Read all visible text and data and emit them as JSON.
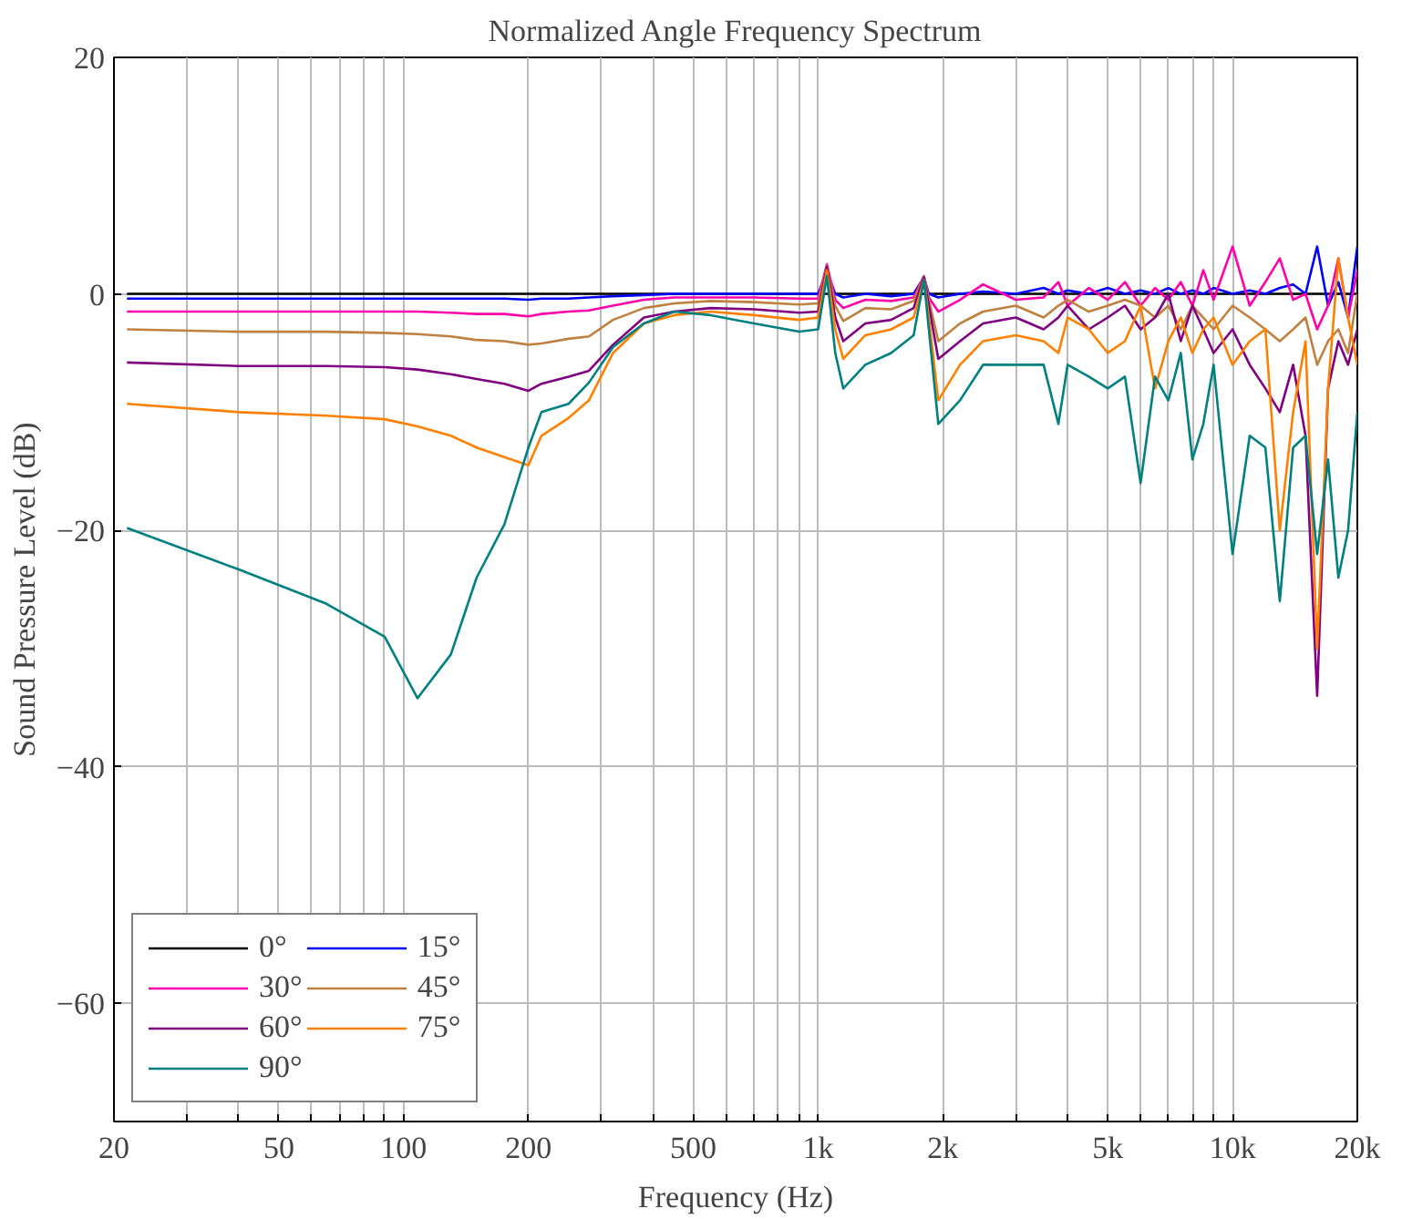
{
  "chart_data": {
    "type": "line",
    "title": "Normalized Angle Frequency Spectrum",
    "xlabel": "Frequency (Hz)",
    "ylabel": "Sound Pressure Level (dB)",
    "log": "x",
    "grid": true,
    "legend": "bottom left",
    "line_style": "solid",
    "marker": "none",
    "xlim": [
      20,
      20000
    ],
    "ylim": [
      -70,
      20
    ],
    "xticks": [
      20,
      {
        "value": 30,
        "label": null
      },
      {
        "value": 40,
        "label": null
      },
      50,
      {
        "value": 60,
        "label": null
      },
      {
        "value": 70,
        "label": null
      },
      {
        "value": 80,
        "label": null
      },
      {
        "value": 90,
        "label": null
      },
      100,
      200,
      {
        "value": 300,
        "label": null
      },
      {
        "value": 400,
        "label": null
      },
      500,
      {
        "value": 600,
        "label": null
      },
      {
        "value": 700,
        "label": null
      },
      {
        "value": 800,
        "label": null
      },
      {
        "value": 900,
        "label": null
      },
      {
        "value": 1000,
        "label": "1k"
      },
      {
        "value": 2000,
        "label": "2k"
      },
      {
        "value": 3000,
        "label": null
      },
      {
        "value": 4000,
        "label": null
      },
      {
        "value": 5000,
        "label": "5k"
      },
      {
        "value": 6000,
        "label": null
      },
      {
        "value": 7000,
        "label": null
      },
      {
        "value": 8000,
        "label": null
      },
      {
        "value": 9000,
        "label": null
      },
      {
        "value": 10000,
        "label": "10k"
      },
      {
        "value": 20000,
        "label": "20k"
      }
    ],
    "yticks": [
      20,
      0,
      {
        "value": -20,
        "label": "−20"
      },
      {
        "value": -40,
        "label": "−40"
      },
      {
        "value": -60,
        "label": "−60"
      }
    ],
    "x": [
      21.5,
      40,
      65,
      90,
      108,
      130,
      150,
      175,
      200,
      215,
      250,
      280,
      320,
      380,
      450,
      550,
      700,
      900,
      1000,
      1050,
      1100,
      1150,
      1300,
      1500,
      1700,
      1800,
      1850,
      1950,
      2200,
      2500,
      3000,
      3500,
      3800,
      4000,
      4500,
      5000,
      5500,
      6000,
      6500,
      7000,
      7500,
      8000,
      8500,
      9000,
      10000,
      11000,
      12000,
      13000,
      14000,
      15000,
      16000,
      17000,
      18000,
      19000,
      20000
    ],
    "series": [
      {
        "name": "0°",
        "color": "#000000",
        "values": [
          0,
          0,
          0,
          0,
          0,
          0,
          0,
          0,
          0,
          0,
          0,
          0,
          0,
          0,
          0,
          0,
          0,
          0,
          0,
          0,
          0,
          0,
          0,
          0,
          0,
          0,
          0,
          0,
          0,
          0,
          0,
          0,
          0,
          0,
          0,
          0,
          0,
          0,
          0,
          0,
          0,
          0,
          0,
          0,
          0,
          0,
          0,
          0,
          0,
          0,
          0,
          0,
          0,
          0,
          0
        ]
      },
      {
        "name": "15°",
        "color": "#0000ff",
        "values": [
          -0.4,
          -0.4,
          -0.4,
          -0.4,
          -0.4,
          -0.4,
          -0.4,
          -0.4,
          -0.5,
          -0.4,
          -0.4,
          -0.3,
          -0.2,
          -0.1,
          0,
          0,
          0,
          0,
          0,
          1.9,
          0,
          -0.3,
          0,
          -0.2,
          0,
          1.4,
          0,
          -0.3,
          0,
          0.2,
          0,
          0.5,
          0,
          0.3,
          0,
          0.5,
          0,
          0.3,
          0,
          0.5,
          0,
          0.3,
          0,
          0.5,
          0,
          0.3,
          0,
          0.5,
          0.8,
          0,
          4,
          -1,
          1,
          -2,
          4
        ]
      },
      {
        "name": "30°",
        "color": "#ff00aa",
        "values": [
          -1.5,
          -1.5,
          -1.5,
          -1.5,
          -1.5,
          -1.6,
          -1.7,
          -1.7,
          -1.9,
          -1.7,
          -1.5,
          -1.4,
          -1,
          -0.5,
          -0.3,
          -0.3,
          -0.3,
          -0.4,
          -0.4,
          2.5,
          -0.5,
          -1.2,
          -0.5,
          -0.6,
          -0.3,
          1.5,
          -0.3,
          -1.5,
          -0.5,
          0.8,
          -0.5,
          -0.3,
          1,
          -1,
          0.5,
          -0.5,
          1,
          -1,
          0.5,
          -0.5,
          1,
          -1,
          2,
          -0.5,
          4,
          -1,
          1,
          3,
          -0.5,
          0,
          -3,
          -1,
          3,
          -2,
          2
        ]
      },
      {
        "name": "45°",
        "color": "#bf8040",
        "values": [
          -3,
          -3.2,
          -3.2,
          -3.3,
          -3.4,
          -3.6,
          -3.9,
          -4,
          -4.3,
          -4.2,
          -3.8,
          -3.6,
          -2.2,
          -1.2,
          -0.8,
          -0.6,
          -0.7,
          -0.9,
          -0.8,
          2.4,
          -1,
          -2.3,
          -1.2,
          -1.3,
          -0.6,
          1.5,
          -0.5,
          -4,
          -2.5,
          -1.5,
          -1,
          -2,
          -1,
          -0.5,
          -1.5,
          -1,
          -0.5,
          -1,
          -2,
          -1,
          -3,
          -1,
          -2,
          -3,
          -1,
          -2,
          -3,
          -4,
          -3,
          -2,
          -6,
          -4,
          -3,
          -5,
          0
        ]
      },
      {
        "name": "60°",
        "color": "#800080",
        "values": [
          -5.8,
          -6.1,
          -6.1,
          -6.2,
          -6.4,
          -6.8,
          -7.2,
          -7.6,
          -8.2,
          -7.6,
          -7,
          -6.5,
          -4.3,
          -2,
          -1.5,
          -1.2,
          -1.3,
          -1.6,
          -1.5,
          2.3,
          -2,
          -4,
          -2.5,
          -2.2,
          -1.2,
          1.4,
          -1,
          -5.5,
          -4,
          -2.5,
          -2,
          -3,
          -2,
          -1,
          -3,
          -2,
          -1,
          -3,
          -2,
          0,
          -4,
          -1,
          -3,
          -5,
          -3,
          -6,
          -8,
          -10,
          -6,
          -12,
          -34,
          -8,
          -4,
          -6,
          -3
        ]
      },
      {
        "name": "75°",
        "color": "#ff8000",
        "values": [
          -9.3,
          -10,
          -10.3,
          -10.6,
          -11.2,
          -12,
          -13,
          -13.8,
          -14.5,
          -12,
          -10.5,
          -9,
          -5,
          -2.5,
          -1.8,
          -1.5,
          -1.8,
          -2.2,
          -2,
          2,
          -3,
          -5.5,
          -3.5,
          -3,
          -2,
          1.2,
          -2,
          -9,
          -6,
          -4,
          -3.5,
          -4,
          -5,
          -2,
          -3,
          -5,
          -4,
          -1,
          -8,
          -4,
          -2,
          -5,
          -3,
          -2,
          -6,
          -4,
          -3,
          -20,
          -10,
          -4,
          -30,
          -8,
          3,
          -2,
          -6
        ]
      },
      {
        "name": "90°",
        "color": "#008080",
        "values": [
          -19.8,
          -23.3,
          -26.2,
          -29,
          -34.2,
          -30.5,
          -24,
          -19.5,
          -13,
          -10,
          -9.3,
          -7.5,
          -4.5,
          -2.5,
          -1.5,
          -1.8,
          -2.5,
          -3.2,
          -3,
          1.5,
          -5,
          -8,
          -6,
          -5,
          -3.5,
          1.2,
          -3,
          -11,
          -9,
          -6,
          -6,
          -6,
          -11,
          -6,
          -7,
          -8,
          -7,
          -16,
          -7,
          -9,
          -5,
          -14,
          -11,
          -6,
          -22,
          -12,
          -13,
          -26,
          -13,
          -12,
          -22,
          -14,
          -24,
          -20,
          -10
        ]
      }
    ]
  }
}
